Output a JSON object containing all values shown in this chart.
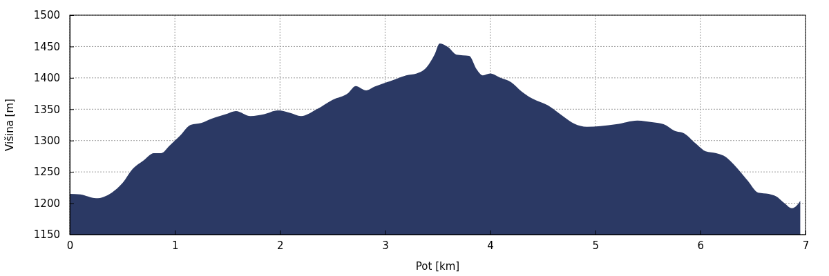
{
  "chart_data": {
    "type": "area",
    "xlabel": "Pot [km]",
    "ylabel": "Višina [m]",
    "x": [
      0,
      0.1,
      0.25,
      0.4,
      0.5,
      0.6,
      0.7,
      0.8,
      0.87,
      0.95,
      1.05,
      1.15,
      1.25,
      1.35,
      1.5,
      1.58,
      1.72,
      1.85,
      1.98,
      2.1,
      2.2,
      2.35,
      2.5,
      2.65,
      2.72,
      2.82,
      2.9,
      3.1,
      3.2,
      3.3,
      3.4,
      3.47,
      3.52,
      3.6,
      3.68,
      3.8,
      3.87,
      3.93,
      4.0,
      4.1,
      4.2,
      4.3,
      4.4,
      4.55,
      4.7,
      4.8,
      4.92,
      5.05,
      5.2,
      5.4,
      5.55,
      5.65,
      5.75,
      5.85,
      5.95,
      6.05,
      6.15,
      6.22,
      6.35,
      6.45,
      6.55,
      6.65,
      6.72,
      6.8,
      6.87,
      6.92,
      6.95
    ],
    "series": [
      {
        "color": "#2b3964",
        "values": [
          1215,
          1214,
          1208,
          1217,
          1232,
          1255,
          1268,
          1280,
          1280,
          1292,
          1308,
          1325,
          1328,
          1335,
          1343,
          1347,
          1339,
          1342,
          1348,
          1344,
          1339,
          1350,
          1365,
          1376,
          1387,
          1380,
          1386,
          1398,
          1404,
          1407,
          1418,
          1437,
          1455,
          1449,
          1437,
          1435,
          1414,
          1404,
          1407,
          1400,
          1393,
          1378,
          1367,
          1356,
          1338,
          1327,
          1322,
          1323,
          1326,
          1332,
          1329,
          1326,
          1316,
          1311,
          1296,
          1283,
          1280,
          1276,
          1256,
          1236,
          1217,
          1215,
          1211,
          1200,
          1192,
          1197,
          1204
        ]
      }
    ],
    "xlim": [
      0,
      7
    ],
    "xticks": [
      0,
      1,
      2,
      3,
      4,
      5,
      6,
      7
    ],
    "ylim": [
      1150,
      1500
    ],
    "yticks": [
      1150,
      1200,
      1250,
      1300,
      1350,
      1400,
      1450,
      1500
    ],
    "grid": true
  }
}
